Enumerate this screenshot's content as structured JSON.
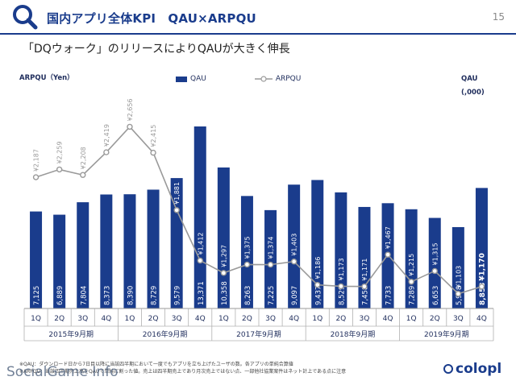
{
  "header": {
    "title": "国内アプリ全体KPI　QAU×ARPQU",
    "page_number": "15",
    "subtitle": "「DQウォーク」のリリースによりQAUが大きく伸長"
  },
  "footer": {
    "note1": "※QAU：ダウンロード日から7日目以降に当該四半期において一度でもアプリを立ち上げたユーザの数。各アプリの単純合算値",
    "note2": "※ARPQU：当該四半期売上高をQAUで単純に割った値。売上は四半期売上であり月次売上ではない点、一部他社協業案件はネット計上である点に注意",
    "watermark": "SocialGame Info",
    "logo": "colopl"
  },
  "chart_data": {
    "type": "bar",
    "ylabel_left": "ARPQU（Yen）",
    "ylabel_right_line1": "QAU",
    "ylabel_right_line2": "(,000)",
    "quarters": [
      "1Q",
      "2Q",
      "3Q",
      "4Q",
      "1Q",
      "2Q",
      "3Q",
      "4Q",
      "1Q",
      "2Q",
      "3Q",
      "4Q",
      "1Q",
      "2Q",
      "3Q",
      "4Q",
      "1Q",
      "2Q",
      "3Q",
      "4Q"
    ],
    "fiscal_years": [
      "2015年9月期",
      "2016年9月期",
      "2017年9月期",
      "2018年9月期",
      "2019年9月期"
    ],
    "series": [
      {
        "name": "QAU",
        "kind": "bar",
        "color": "#1a3c8c",
        "values": [
          7125,
          6889,
          7804,
          8373,
          8390,
          8729,
          9579,
          13371,
          10358,
          8263,
          7225,
          9097,
          9437,
          8529,
          7458,
          7733,
          7289,
          6653,
          5978,
          8853
        ],
        "labels": [
          "7,125",
          "6,889",
          "7,804",
          "8,373",
          "8,390",
          "8,729",
          "9,579",
          "13,371",
          "10,358",
          "8,263",
          "7,225",
          "9,097",
          "9,437",
          "8,529",
          "7,458",
          "7,733",
          "7,289",
          "6,653",
          "5,978",
          "8,853"
        ]
      },
      {
        "name": "ARPQU",
        "kind": "line",
        "color": "#9a9a9a",
        "values": [
          2187,
          2259,
          2208,
          2419,
          2656,
          2415,
          1881,
          1412,
          1297,
          1375,
          1374,
          1403,
          1186,
          1173,
          1171,
          1467,
          1215,
          1315,
          1103,
          1170
        ],
        "labels": [
          "¥2,187",
          "¥2,259",
          "¥2,208",
          "¥2,419",
          "¥2,656",
          "¥2,415",
          "¥1,881",
          "¥1,412",
          "¥1,297",
          "¥1,375",
          "¥1,374",
          "¥1,403",
          "¥1,186",
          "¥1,173",
          "¥1,171",
          "¥1,467",
          "¥1,215",
          "¥1,315",
          "¥1,103",
          "¥1,170"
        ]
      }
    ]
  }
}
